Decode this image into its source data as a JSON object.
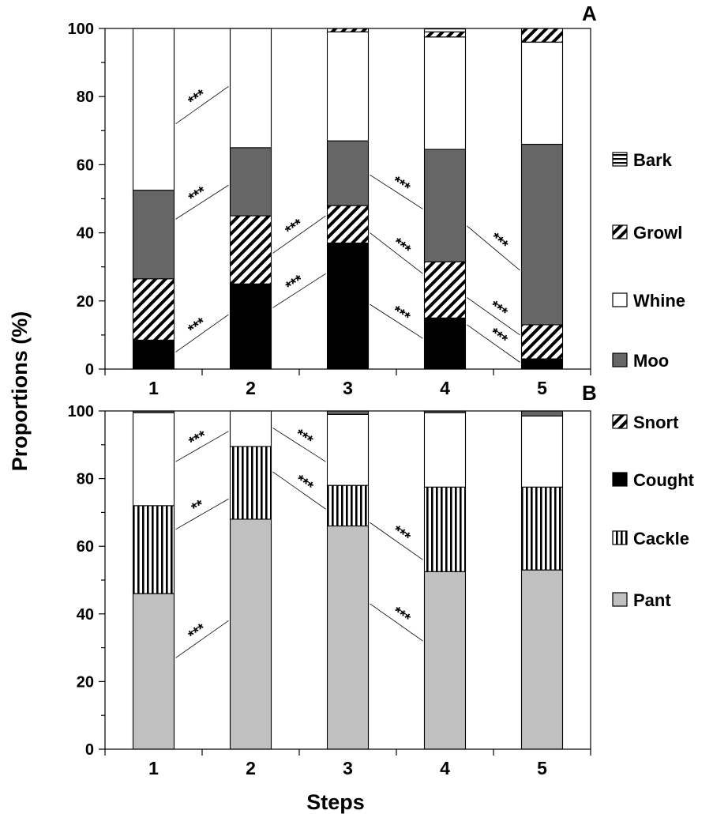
{
  "chart_data": {
    "type": "bar",
    "stacked": true,
    "xlabel": "Steps",
    "ylabel": "Proportions (%)",
    "legend": {
      "placement": "right",
      "items": [
        {
          "name": "Bark",
          "pattern": "horizontal-lines"
        },
        {
          "name": "Growl",
          "pattern": "diagonal-lines"
        },
        {
          "name": "Whine",
          "pattern": "white"
        },
        {
          "name": "Moo",
          "pattern": "dark-gray"
        },
        {
          "name": "Snort",
          "pattern": "diagonal-lines"
        },
        {
          "name": "Cought",
          "pattern": "black"
        },
        {
          "name": "Cackle",
          "pattern": "vertical-lines"
        },
        {
          "name": "Pant",
          "pattern": "light-gray"
        }
      ]
    },
    "colors": {
      "moo": "#666666",
      "pant": "#c0c0c0",
      "cought": "#000000",
      "whine": "#ffffff"
    },
    "panels": [
      {
        "label": "A",
        "categories": [
          "1",
          "2",
          "3",
          "4",
          "5"
        ],
        "ylim": [
          0,
          100
        ],
        "yticks": [
          0,
          20,
          40,
          60,
          80,
          100
        ],
        "series": [
          {
            "name": "Cought",
            "values": [
              8.5,
              25,
              37,
              15,
              3
            ]
          },
          {
            "name": "Snort",
            "values": [
              18,
              20,
              11,
              16.5,
              10
            ]
          },
          {
            "name": "Moo",
            "values": [
              26,
              20,
              19,
              33,
              53
            ]
          },
          {
            "name": "Whine",
            "values": [
              47.5,
              35,
              32,
              33,
              30
            ]
          },
          {
            "name": "Growl",
            "values": [
              0,
              0,
              1,
              1.5,
              4
            ]
          },
          {
            "name": "Bark",
            "values": [
              0,
              0,
              0,
              1,
              0
            ]
          }
        ],
        "annotations": [
          {
            "text": "***",
            "between": [
              1,
              2
            ],
            "from": 72,
            "to": 83
          },
          {
            "text": "***",
            "between": [
              1,
              2
            ],
            "from": 44,
            "to": 54
          },
          {
            "text": "***",
            "between": [
              1,
              2
            ],
            "from": 5,
            "to": 16
          },
          {
            "text": "***",
            "between": [
              2,
              3
            ],
            "from": 34,
            "to": 45
          },
          {
            "text": "***",
            "between": [
              2,
              3
            ],
            "from": 18,
            "to": 28
          },
          {
            "text": "***",
            "between": [
              3,
              4
            ],
            "from": 57,
            "to": 47
          },
          {
            "text": "***",
            "between": [
              3,
              4
            ],
            "from": 40,
            "to": 28
          },
          {
            "text": "***",
            "between": [
              3,
              4
            ],
            "from": 19,
            "to": 9
          },
          {
            "text": "***",
            "between": [
              4,
              5
            ],
            "from": 42,
            "to": 29
          },
          {
            "text": "***",
            "between": [
              4,
              5
            ],
            "from": 21,
            "to": 10
          },
          {
            "text": "***",
            "between": [
              4,
              5
            ],
            "from": 13,
            "to": 2
          }
        ]
      },
      {
        "label": "B",
        "categories": [
          "1",
          "2",
          "3",
          "4",
          "5"
        ],
        "ylim": [
          0,
          100
        ],
        "yticks": [
          0,
          20,
          40,
          60,
          80,
          100
        ],
        "series": [
          {
            "name": "Pant",
            "values": [
              46,
              68,
              66,
              52.5,
              53
            ]
          },
          {
            "name": "Cackle",
            "values": [
              26,
              21.5,
              12,
              25,
              24.5
            ]
          },
          {
            "name": "Whine",
            "values": [
              27.5,
              10.5,
              21,
              22,
              21
            ]
          },
          {
            "name": "Moo",
            "values": [
              0.5,
              0,
              1,
              0.5,
              1.5
            ]
          }
        ],
        "annotations": [
          {
            "text": "***",
            "between": [
              1,
              2
            ],
            "from": 85,
            "to": 94
          },
          {
            "text": "**",
            "between": [
              1,
              2
            ],
            "from": 65,
            "to": 74
          },
          {
            "text": "***",
            "between": [
              1,
              2
            ],
            "from": 27,
            "to": 38
          },
          {
            "text": "***",
            "between": [
              2,
              3
            ],
            "from": 95,
            "to": 85
          },
          {
            "text": "***",
            "between": [
              2,
              3
            ],
            "from": 82,
            "to": 71
          },
          {
            "text": "***",
            "between": [
              3,
              4
            ],
            "from": 67,
            "to": 56
          },
          {
            "text": "***",
            "between": [
              3,
              4
            ],
            "from": 43,
            "to": 32
          }
        ]
      }
    ]
  }
}
